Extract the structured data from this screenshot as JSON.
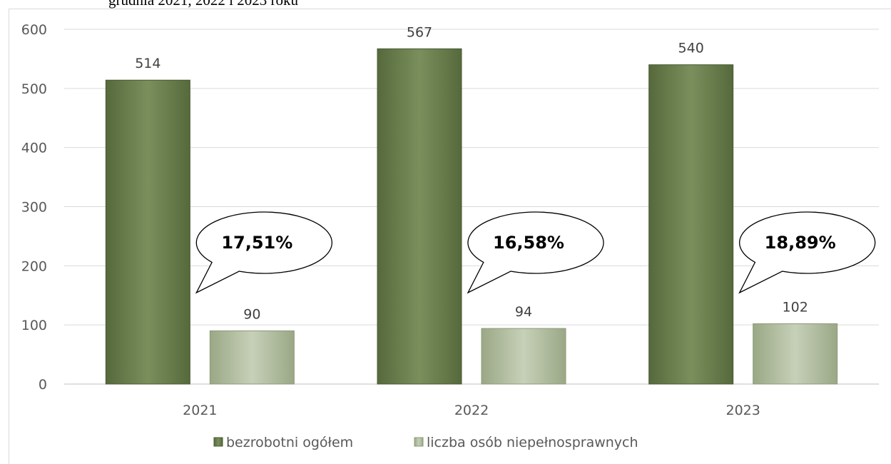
{
  "caption": "grudnia 2021, 2022 i 2023 roku",
  "chart_data": {
    "type": "bar",
    "categories": [
      "2021",
      "2022",
      "2023"
    ],
    "series": [
      {
        "name": "bezrobotni ogółem",
        "values": [
          514,
          567,
          540
        ],
        "color": "#6b7f4f"
      },
      {
        "name": "liczba osób niepełnosprawnych",
        "values": [
          90,
          94,
          102
        ],
        "color": "#b4bfa3"
      }
    ],
    "callouts": [
      "17,51%",
      "16,58%",
      "18,89%"
    ],
    "yticks": [
      "0",
      "100",
      "200",
      "300",
      "400",
      "500",
      "600"
    ],
    "ylim": [
      0,
      600
    ],
    "grid": true,
    "legend_position": "bottom"
  }
}
